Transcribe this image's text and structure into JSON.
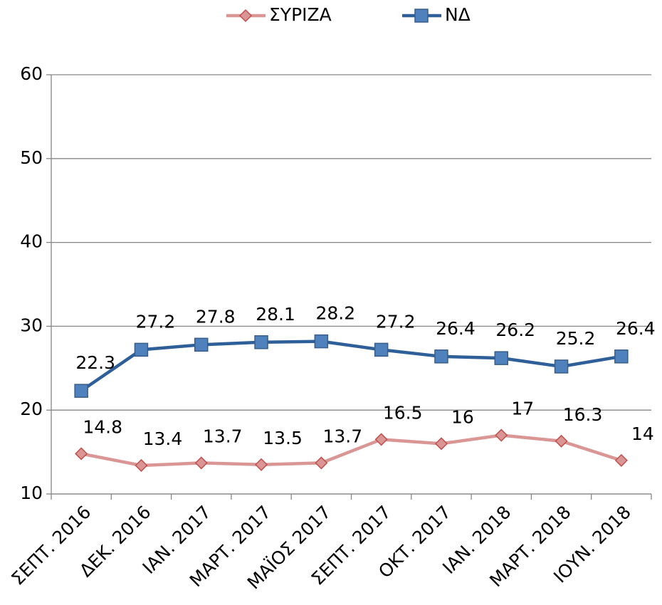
{
  "chart_data": {
    "type": "line",
    "categories": [
      "ΣΕΠΤ. 2016",
      "ΔΕΚ. 2016",
      "ΙΑΝ. 2017",
      "ΜΑΡΤ. 2017",
      "ΜΑΪΟΣ 2017",
      "ΣΕΠΤ. 2017",
      "ΟΚΤ. 2017",
      "ΙΑΝ. 2018",
      "ΜΑΡΤ. 2018",
      "ΙΟΥΝ. 2018"
    ],
    "series": [
      {
        "name": "ΣΥΡΙΖΑ",
        "color": "#d99694",
        "marker_edge": "#c0504d",
        "marker": "diamond",
        "values": [
          14.8,
          13.4,
          13.7,
          13.5,
          13.7,
          16.5,
          16,
          17,
          16.3,
          14
        ]
      },
      {
        "name": "ΝΔ",
        "color": "#2e5f99",
        "marker_edge": "#385d8a",
        "marker_fill": "#4f81bd",
        "marker": "square",
        "values": [
          22.3,
          27.2,
          27.8,
          28.1,
          28.2,
          27.2,
          26.4,
          26.2,
          25.2,
          26.4
        ]
      }
    ],
    "ylim": [
      10,
      60
    ],
    "yticks": [
      10,
      20,
      30,
      40,
      50,
      60
    ],
    "grid": true,
    "legend": "top",
    "data_labels": true
  }
}
